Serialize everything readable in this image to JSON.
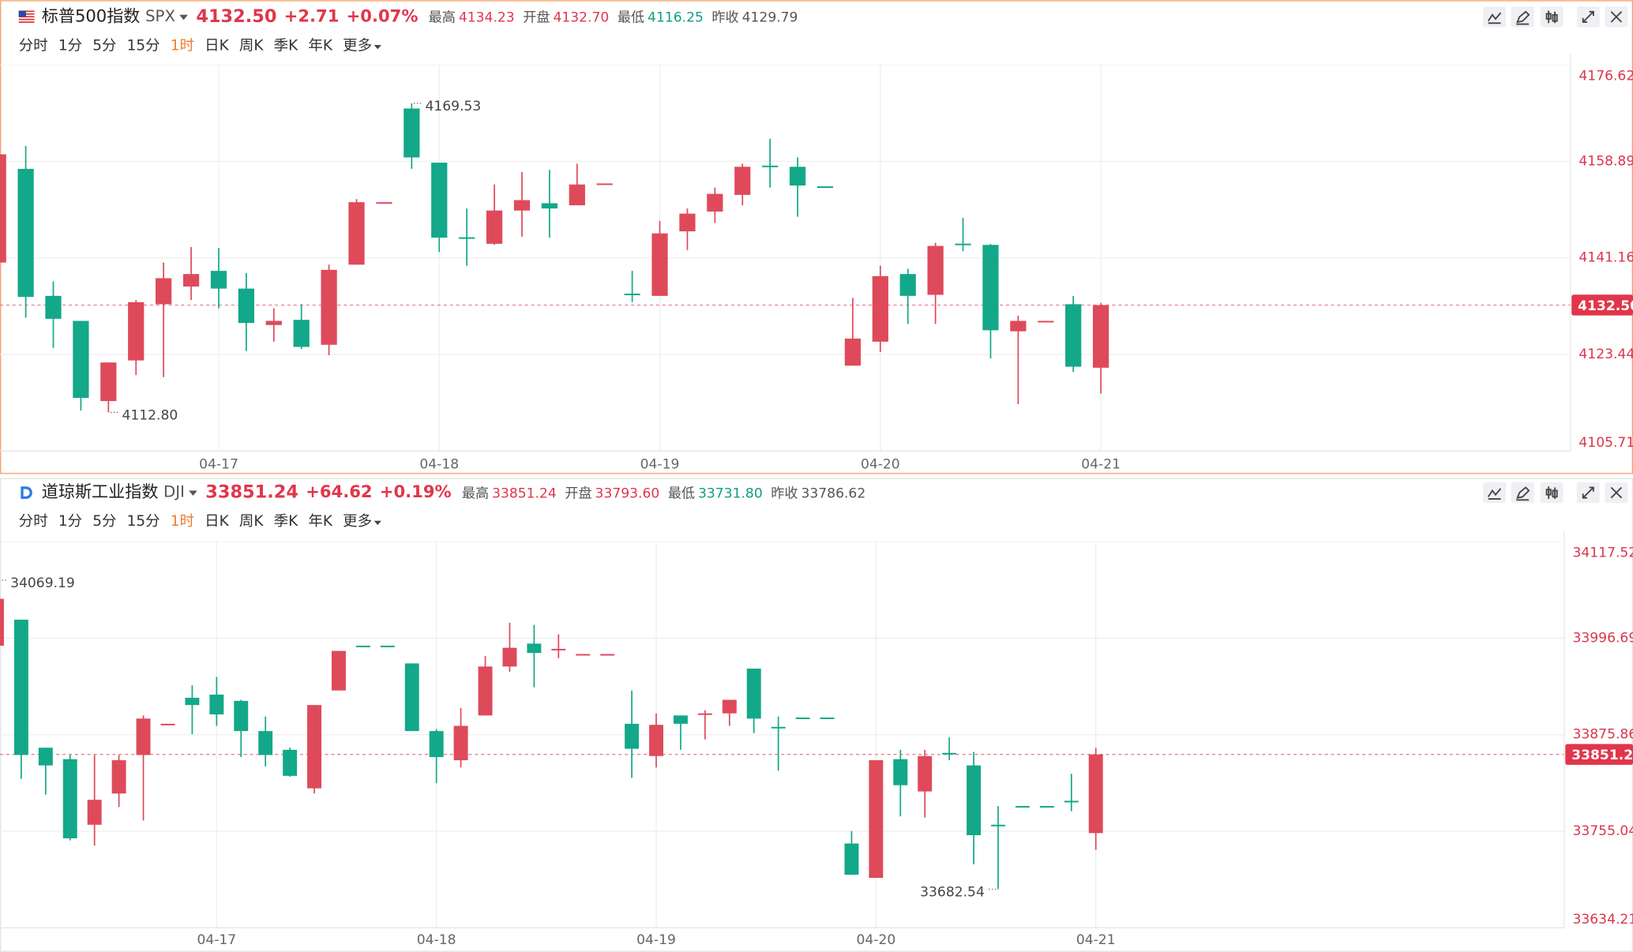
{
  "toolbar": {
    "tabs": [
      "分时",
      "1分",
      "5分",
      "15分",
      "1时",
      "日K",
      "周K",
      "季K",
      "年K",
      "更多"
    ],
    "active_tab": "1时"
  },
  "chart_data": [
    {
      "type": "candlestick",
      "name": "标普500指数",
      "code": "SPX",
      "price": "4132.50",
      "change": "+2.71",
      "change_pct": "+0.07%",
      "stats": [
        {
          "label": "最高",
          "value": "4134.23",
          "color": "#e0364c"
        },
        {
          "label": "开盘",
          "value": "4132.70",
          "color": "#e0364c"
        },
        {
          "label": "最低",
          "value": "4116.25",
          "color": "#0f9d7f"
        },
        {
          "label": "昨收",
          "value": "4129.79",
          "color": "#555555"
        }
      ],
      "up_color": "#de4a5a",
      "down_color": "#13a889",
      "grid": true,
      "ylim": [
        4105.71,
        4176.62
      ],
      "yticks": [
        4105.71,
        4123.44,
        4141.16,
        4158.89,
        4176.62
      ],
      "price_line": {
        "value": 4132.5,
        "label": "4132.50"
      },
      "annotations": [
        {
          "value": 4169.53,
          "label": "4169.53"
        },
        {
          "value": 4112.8,
          "label": "4112.80"
        }
      ],
      "categories": [
        null,
        null,
        null,
        null,
        null,
        null,
        null,
        null,
        "04-17",
        null,
        null,
        null,
        null,
        null,
        null,
        null,
        "04-18",
        null,
        null,
        null,
        null,
        null,
        null,
        null,
        "04-19",
        null,
        null,
        null,
        null,
        null,
        null,
        null,
        "04-20",
        null,
        null,
        null,
        null,
        null,
        null,
        null,
        "04-21"
      ],
      "open": [
        4140.31,
        4157.51,
        4134.19,
        4129.6,
        4114.88,
        4122.34,
        4132.66,
        4135.91,
        4138.78,
        4135.53,
        4128.84,
        4129.79,
        4125.21,
        4139.92,
        4151.36,
        4168.59,
        4158.65,
        4144.95,
        4143.75,
        4149.86,
        4151.2,
        4150.82,
        4154.8,
        4134.6,
        4134.19,
        4146.04,
        4149.67,
        4152.73,
        4158.1,
        4157.89,
        4154.3,
        4121.38,
        4125.78,
        4138.2,
        4134.38,
        4143.78,
        4143.55,
        4127.69,
        4129.57,
        4132.66,
        4121.0
      ],
      "high": [
        4160.18,
        4161.71,
        4136.86,
        4129.6,
        4121.96,
        4133.42,
        4140.31,
        4143.17,
        4142.98,
        4138.39,
        4131.9,
        4132.66,
        4139.92,
        4151.96,
        4151.39,
        4169.53,
        4158.65,
        4150.24,
        4154.64,
        4156.93,
        4157.32,
        4158.46,
        4154.83,
        4138.78,
        4147.95,
        4150.24,
        4154.07,
        4158.46,
        4163.05,
        4159.61,
        4154.3,
        4133.81,
        4139.73,
        4139.16,
        4143.94,
        4148.52,
        4143.75,
        4130.56,
        4129.6,
        4134.19,
        4132.91
      ],
      "low": [
        4140.31,
        4130.18,
        4124.63,
        4113.16,
        4112.8,
        4119.66,
        4119.28,
        4133.42,
        4131.9,
        4124.06,
        4125.78,
        4124.44,
        4123.29,
        4139.92,
        4151.36,
        4157.51,
        4142.22,
        4139.73,
        4143.55,
        4145.08,
        4144.89,
        4150.82,
        4154.8,
        4133.04,
        4134.19,
        4142.6,
        4147.57,
        4150.82,
        4154.07,
        4148.72,
        4154.26,
        4121.38,
        4123.87,
        4129.03,
        4129.03,
        4142.41,
        4122.72,
        4114.31,
        4129.57,
        4120.24,
        4116.25
      ],
      "close": [
        4160.18,
        4134.0,
        4129.98,
        4115.46,
        4121.96,
        4133.04,
        4137.44,
        4138.2,
        4135.53,
        4129.22,
        4129.6,
        4124.82,
        4138.97,
        4151.39,
        4151.39,
        4159.61,
        4144.89,
        4144.89,
        4149.86,
        4151.77,
        4150.24,
        4154.64,
        4154.83,
        4134.57,
        4145.66,
        4149.29,
        4152.92,
        4157.89,
        4158.08,
        4154.45,
        4154.26,
        4126.35,
        4137.82,
        4134.19,
        4143.36,
        4143.75,
        4127.88,
        4129.6,
        4129.6,
        4121.19,
        4132.5
      ]
    },
    {
      "type": "candlestick",
      "name": "道琼斯工业指数",
      "code": "DJI",
      "price": "33851.24",
      "change": "+64.62",
      "change_pct": "+0.19%",
      "stats": [
        {
          "label": "最高",
          "value": "33851.24",
          "color": "#e0364c"
        },
        {
          "label": "开盘",
          "value": "33793.60",
          "color": "#e0364c"
        },
        {
          "label": "最低",
          "value": "33731.80",
          "color": "#0f9d7f"
        },
        {
          "label": "昨收",
          "value": "33786.62",
          "color": "#555555"
        }
      ],
      "up_color": "#de4a5a",
      "down_color": "#13a889",
      "grid": true,
      "ylim": [
        33634.21,
        34117.52
      ],
      "yticks": [
        33634.21,
        33755.04,
        33875.86,
        33996.69,
        34117.52
      ],
      "price_line": {
        "value": 33851.24,
        "label": "33851.24"
      },
      "annotations": [
        {
          "value": 34069.19,
          "label": "34069.19"
        },
        {
          "value": 33682.54,
          "label": "33682.54"
        }
      ],
      "categories": [
        null,
        null,
        null,
        null,
        null,
        null,
        null,
        null,
        null,
        "04-17",
        null,
        null,
        null,
        null,
        null,
        null,
        null,
        null,
        "04-18",
        null,
        null,
        null,
        null,
        null,
        null,
        null,
        null,
        "04-19",
        null,
        null,
        null,
        null,
        null,
        null,
        null,
        null,
        "04-20",
        null,
        null,
        null,
        null,
        null,
        null,
        null,
        null,
        "04-21"
      ],
      "open": [
        33987.25,
        34019.82,
        33859.59,
        33845.26,
        33763.19,
        33802.27,
        33850.47,
        33889.52,
        33922.11,
        33926.02,
        33918.21,
        33880.43,
        33856.98,
        33808.78,
        33931.23,
        33987.28,
        33987.28,
        33965.1,
        33880.43,
        33843.95,
        33899.97,
        33961.2,
        33989.86,
        33983.31,
        33976.8,
        33976.8,
        33889.55,
        33849.16,
        33899.97,
        33902.54,
        33902.57,
        33958.59,
        33885.67,
        33897.39,
        33897.39,
        33739.74,
        33696.75,
        33845.26,
        33804.87,
        33853.1,
        33837.44,
        33763.22,
        33786.66,
        33786.66,
        33793.18,
        33752.76
      ],
      "high": [
        34069.19,
        34019.82,
        33859.59,
        33850.47,
        33850.47,
        33850.47,
        33899.97,
        33889.55,
        33937.75,
        33948.17,
        33919.51,
        33898.67,
        33859.59,
        33913.0,
        33980.74,
        33987.28,
        33987.28,
        33965.1,
        33883.03,
        33909.09,
        33974.22,
        34015.91,
        34013.3,
        34001.58,
        33976.83,
        33976.83,
        33931.23,
        33902.57,
        33899.97,
        33906.48,
        33919.51,
        33958.59,
        33898.67,
        33897.39,
        33897.39,
        33755.37,
        33843.95,
        33856.98,
        33856.98,
        33872.61,
        33854.37,
        33786.63,
        33786.66,
        33786.66,
        33827.02,
        33859.59
      ],
      "low": [
        33984.64,
        33820.5,
        33800.96,
        33743.65,
        33737.13,
        33785.33,
        33768.4,
        33889.52,
        33876.52,
        33886.94,
        33847.86,
        33836.14,
        33823.11,
        33802.27,
        33931.23,
        33987.25,
        33987.25,
        33880.43,
        33815.29,
        33834.83,
        33899.97,
        33954.68,
        33935.14,
        33971.62,
        33976.8,
        33976.8,
        33821.81,
        33834.83,
        33856.98,
        33870.01,
        33886.94,
        33877.82,
        33830.93,
        33897.36,
        33897.36,
        33700.66,
        33696.75,
        33773.61,
        33772.3,
        33843.95,
        33713.68,
        33682.54,
        33786.63,
        33786.63,
        33780.12,
        33731.8
      ],
      "close": [
        34045.87,
        33850.47,
        33837.44,
        33746.25,
        33794.45,
        33843.95,
        33896.06,
        33889.55,
        33913.0,
        33901.27,
        33880.43,
        33850.47,
        33824.41,
        33913.0,
        33980.74,
        33987.25,
        33987.25,
        33880.43,
        33847.86,
        33886.94,
        33961.2,
        33984.64,
        33978.13,
        33983.34,
        33976.83,
        33976.83,
        33858.28,
        33888.24,
        33889.55,
        33902.57,
        33919.51,
        33896.06,
        33885.64,
        33897.36,
        33897.36,
        33700.66,
        33843.95,
        33812.69,
        33849.16,
        33853.07,
        33750.16,
        33763.19,
        33786.63,
        33786.63,
        33793.15,
        33851.24
      ]
    }
  ]
}
